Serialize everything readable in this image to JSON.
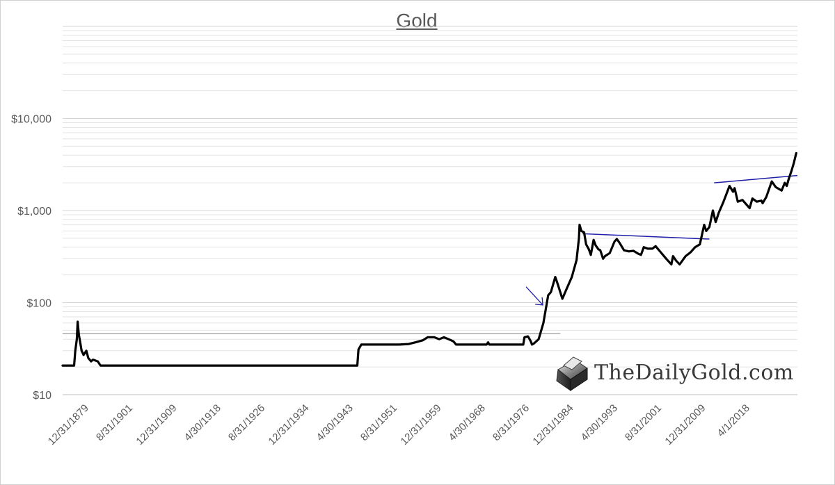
{
  "watermark": {
    "text": "TheDailyGold.com",
    "icon": "gold-bar-logo-icon"
  },
  "colors": {
    "price_line": "#000000",
    "trendline": "#1f1fa8",
    "reference_line": "#7f7f7f",
    "gridline": "#e3e3e3",
    "axis_text": "#595959"
  },
  "chart_data": {
    "type": "line",
    "title": "Gold",
    "xlabel": "",
    "ylabel": "",
    "y_scale": "log",
    "ylim": [
      10,
      100000
    ],
    "xlim": [
      "1871-01-01",
      "2025-12-31"
    ],
    "grid": "horizontal minor log gridlines",
    "legend": "none",
    "y_tick_labels": [
      "$10",
      "$100",
      "$1,000",
      "$10,000"
    ],
    "y_tick_values": [
      10,
      100,
      1000,
      10000
    ],
    "x_tick_labels": [
      "12/31/1879",
      "8/31/1901",
      "12/31/1909",
      "4/30/1918",
      "8/31/1926",
      "12/31/1934",
      "4/30/1943",
      "8/31/1951",
      "12/31/1959",
      "4/30/1968",
      "8/31/1976",
      "12/31/1984",
      "4/30/1993",
      "8/31/2001",
      "12/31/2009",
      "4/1/2018"
    ],
    "series": [
      {
        "values": [
          [
            "1871-01-01",
            20.7
          ],
          [
            "1873-06-01",
            20.7
          ],
          [
            "1873-09-01",
            30
          ],
          [
            "1874-01-01",
            40
          ],
          [
            "1874-03-01",
            62
          ],
          [
            "1874-06-01",
            45
          ],
          [
            "1875-01-01",
            30
          ],
          [
            "1875-06-01",
            27
          ],
          [
            "1876-01-01",
            30
          ],
          [
            "1876-06-01",
            25
          ],
          [
            "1877-01-01",
            23
          ],
          [
            "1877-06-01",
            24
          ],
          [
            "1878-06-01",
            23
          ],
          [
            "1879-01-01",
            20.7
          ],
          [
            "1933-03-01",
            20.7
          ],
          [
            "1933-06-01",
            31
          ],
          [
            "1934-01-01",
            35
          ],
          [
            "1940-01-01",
            35
          ],
          [
            "1942-01-01",
            35
          ],
          [
            "1944-01-01",
            35.5
          ],
          [
            "1945-06-01",
            37
          ],
          [
            "1947-01-01",
            39
          ],
          [
            "1948-01-01",
            42
          ],
          [
            "1949-06-01",
            42
          ],
          [
            "1950-06-01",
            40
          ],
          [
            "1951-06-01",
            42
          ],
          [
            "1952-06-01",
            40
          ],
          [
            "1953-06-01",
            38
          ],
          [
            "1954-01-01",
            35
          ],
          [
            "1960-06-01",
            35
          ],
          [
            "1960-10-01",
            37
          ],
          [
            "1961-01-01",
            35
          ],
          [
            "1968-03-01",
            35
          ],
          [
            "1968-06-01",
            42
          ],
          [
            "1969-03-01",
            43
          ],
          [
            "1969-10-01",
            38
          ],
          [
            "1970-01-01",
            35
          ],
          [
            "1970-06-01",
            36
          ],
          [
            "1971-06-01",
            40
          ],
          [
            "1972-06-01",
            60
          ],
          [
            "1973-06-01",
            120
          ],
          [
            "1974-01-01",
            130
          ],
          [
            "1974-12-01",
            190
          ],
          [
            "1975-06-01",
            160
          ],
          [
            "1976-06-01",
            110
          ],
          [
            "1977-06-01",
            145
          ],
          [
            "1978-06-01",
            190
          ],
          [
            "1979-06-01",
            290
          ],
          [
            "1979-12-01",
            500
          ],
          [
            "1980-01-15",
            700
          ],
          [
            "1980-06-01",
            600
          ],
          [
            "1981-01-01",
            580
          ],
          [
            "1981-06-01",
            430
          ],
          [
            "1982-01-01",
            380
          ],
          [
            "1982-06-01",
            330
          ],
          [
            "1983-01-01",
            480
          ],
          [
            "1983-06-01",
            420
          ],
          [
            "1984-01-01",
            380
          ],
          [
            "1984-06-01",
            370
          ],
          [
            "1985-01-01",
            300
          ],
          [
            "1985-06-01",
            320
          ],
          [
            "1986-06-01",
            345
          ],
          [
            "1987-06-01",
            460
          ],
          [
            "1987-12-01",
            490
          ],
          [
            "1988-06-01",
            450
          ],
          [
            "1989-06-01",
            370
          ],
          [
            "1990-06-01",
            360
          ],
          [
            "1991-06-01",
            365
          ],
          [
            "1992-06-01",
            340
          ],
          [
            "1993-01-01",
            330
          ],
          [
            "1993-08-01",
            400
          ],
          [
            "1994-06-01",
            385
          ],
          [
            "1995-06-01",
            385
          ],
          [
            "1996-02-01",
            410
          ],
          [
            "1997-06-01",
            340
          ],
          [
            "1998-06-01",
            295
          ],
          [
            "1999-06-01",
            260
          ],
          [
            "1999-10-01",
            320
          ],
          [
            "2000-06-01",
            285
          ],
          [
            "2001-03-01",
            260
          ],
          [
            "2002-06-01",
            320
          ],
          [
            "2003-06-01",
            350
          ],
          [
            "2004-06-01",
            400
          ],
          [
            "2005-06-01",
            430
          ],
          [
            "2006-05-01",
            700
          ],
          [
            "2006-10-01",
            600
          ],
          [
            "2007-06-01",
            660
          ],
          [
            "2008-03-01",
            1000
          ],
          [
            "2008-10-01",
            750
          ],
          [
            "2009-06-01",
            950
          ],
          [
            "2010-06-01",
            1250
          ],
          [
            "2011-09-01",
            1850
          ],
          [
            "2012-06-01",
            1600
          ],
          [
            "2012-10-01",
            1750
          ],
          [
            "2013-06-01",
            1250
          ],
          [
            "2014-06-01",
            1300
          ],
          [
            "2015-12-01",
            1060
          ],
          [
            "2016-07-01",
            1350
          ],
          [
            "2017-06-01",
            1250
          ],
          [
            "2018-06-01",
            1280
          ],
          [
            "2018-09-01",
            1200
          ],
          [
            "2019-06-01",
            1400
          ],
          [
            "2020-08-01",
            2070
          ],
          [
            "2021-06-01",
            1800
          ],
          [
            "2022-09-01",
            1650
          ],
          [
            "2023-05-01",
            2000
          ],
          [
            "2023-10-01",
            1850
          ],
          [
            "2024-03-01",
            2200
          ],
          [
            "2024-10-01",
            2700
          ],
          [
            "2025-04-01",
            3300
          ],
          [
            "2025-10-01",
            4200
          ]
        ]
      }
    ],
    "annotations": [
      {
        "type": "horizontal-line",
        "y": 46,
        "x_from": "1871-01-01",
        "x_to": "1976-01-01"
      },
      {
        "type": "trendline",
        "from": [
          "1980-09-01",
          560
        ],
        "to": [
          "2007-06-01",
          490
        ]
      },
      {
        "type": "trendline",
        "from": [
          "2008-06-01",
          2000
        ],
        "to": [
          "2026-01-01",
          2400
        ]
      },
      {
        "type": "arrow",
        "points_to": [
          "1972-08-01",
          85
        ]
      }
    ]
  }
}
